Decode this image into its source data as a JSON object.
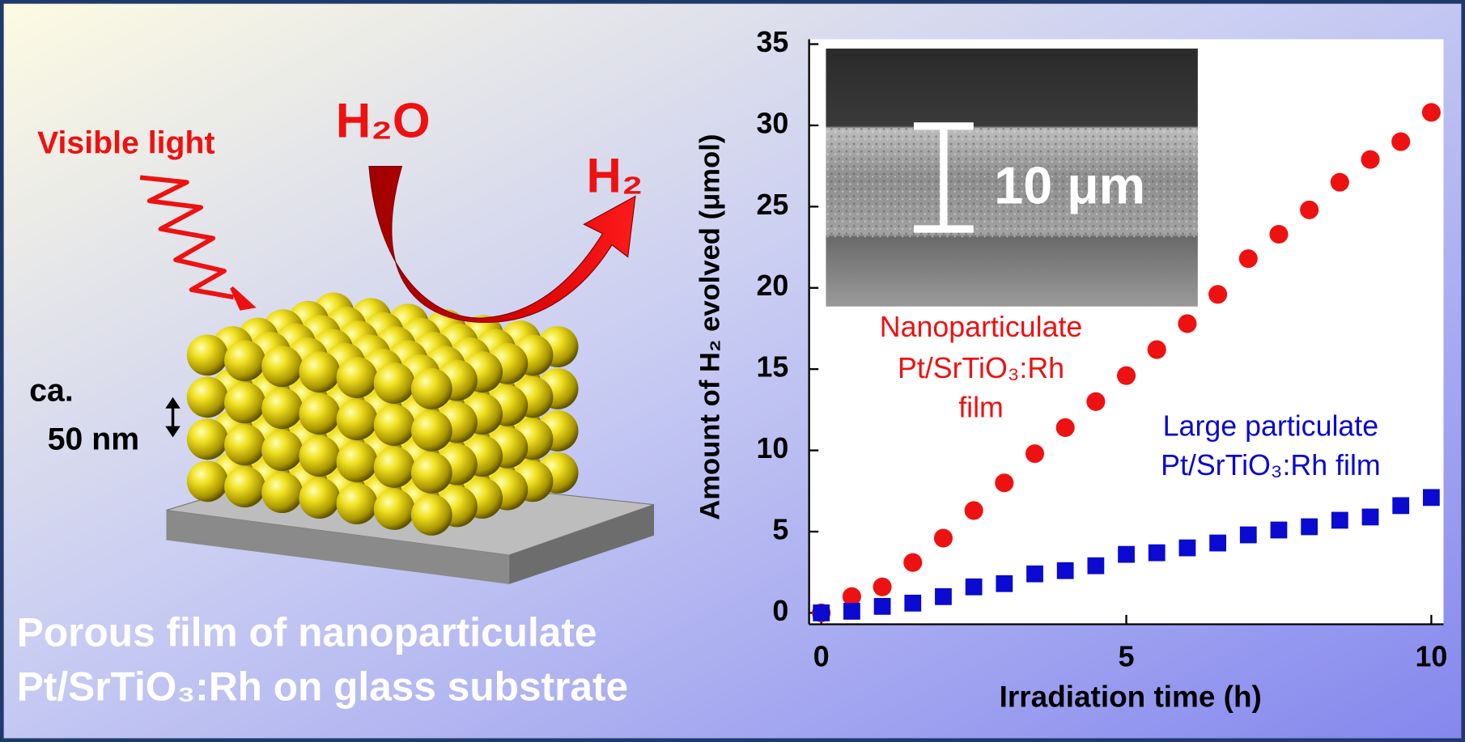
{
  "illustration": {
    "light_label": "Visible light",
    "reactant": "H₂O",
    "product": "H₂",
    "size_label": [
      "ca.",
      "50 nm"
    ],
    "caption": [
      "Porous film of nanoparticulate",
      "Pt/SrTiO₃:Rh on glass substrate"
    ]
  },
  "chart_data": {
    "type": "scatter",
    "x_label": "Irradiation time (h)",
    "y_label": "Amount of H₂ evolved (μmol)",
    "inset_label": "10 μm",
    "x": [
      0,
      0.5,
      1,
      1.5,
      2,
      2.5,
      3,
      3.5,
      4,
      4.5,
      5,
      5.5,
      6,
      6.5,
      7,
      7.5,
      8,
      8.5,
      9,
      9.5,
      10
    ],
    "series": [
      {
        "name": [
          "Nanoparticulate",
          "Pt/SrTiO₃:Rh",
          "film"
        ],
        "color": "#ee1111",
        "marker": "circle",
        "values": [
          0,
          1.0,
          1.6,
          3.1,
          4.6,
          6.3,
          8.0,
          9.8,
          11.4,
          13.0,
          14.6,
          16.2,
          17.8,
          19.6,
          21.8,
          23.3,
          24.8,
          26.5,
          27.9,
          29.0,
          30.8
        ]
      },
      {
        "name": [
          "Large particulate",
          "Pt/SrTiO₃:Rh film"
        ],
        "color": "#0a0ad0",
        "marker": "square",
        "values": [
          0,
          0.1,
          0.4,
          0.6,
          1.0,
          1.6,
          1.8,
          2.4,
          2.6,
          2.9,
          3.6,
          3.7,
          4.0,
          4.3,
          4.8,
          5.1,
          5.3,
          5.7,
          5.9,
          6.6,
          7.1
        ]
      }
    ],
    "xlim": [
      -0.2,
      10.2
    ],
    "ylim": [
      -0.7,
      35.3
    ],
    "xticks": [
      0,
      5,
      10
    ],
    "yticks": [
      0,
      5,
      10,
      15,
      20,
      25,
      30,
      35
    ]
  }
}
